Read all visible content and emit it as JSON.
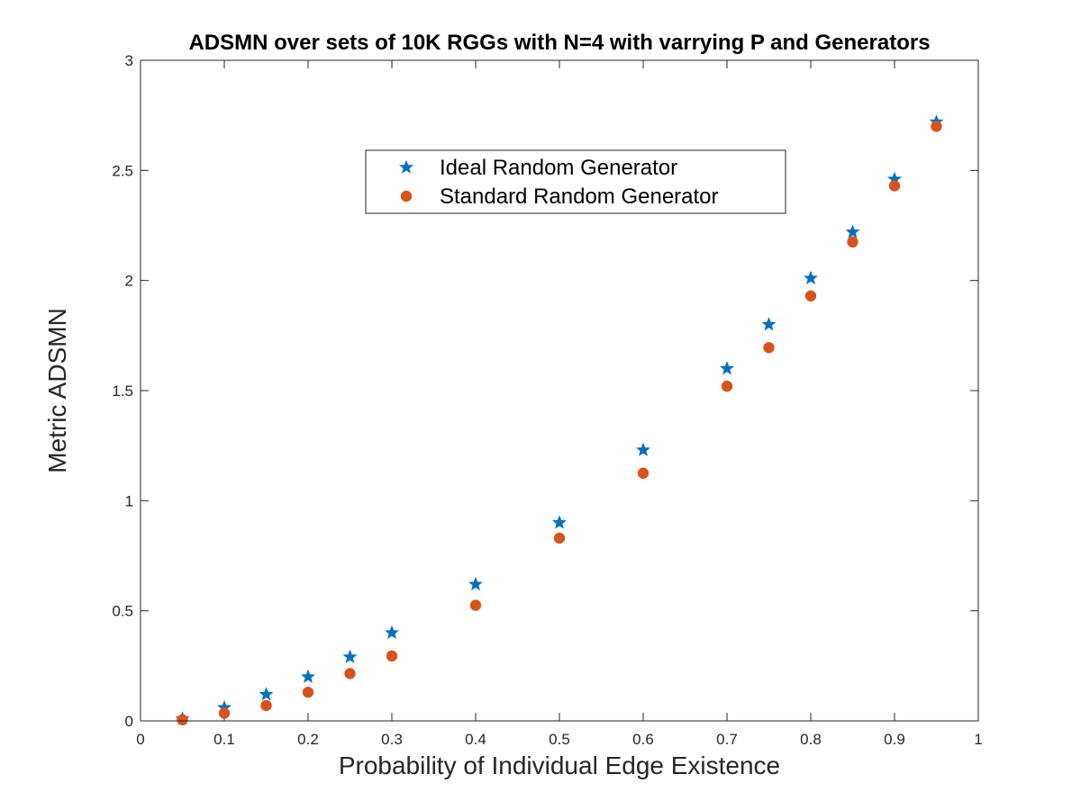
{
  "chart_data": {
    "type": "scatter",
    "title": "ADSMN over sets of 10K RGGs with N=4 with varrying P and Generators",
    "xlabel": "Probability of Individual Edge Existence",
    "ylabel": "Metric ADSMN",
    "xlim": [
      0,
      1
    ],
    "ylim": [
      0,
      3
    ],
    "xticks": [
      "0",
      "0.1",
      "0.2",
      "0.3",
      "0.4",
      "0.5",
      "0.6",
      "0.7",
      "0.8",
      "0.9",
      "1"
    ],
    "yticks": [
      "0",
      "0.5",
      "1",
      "1.5",
      "2",
      "2.5",
      "3"
    ],
    "grid": false,
    "legend_position": "upper-center",
    "series": [
      {
        "name": "Ideal Random Generator",
        "marker": "star",
        "color": "#0072BD",
        "x": [
          0.05,
          0.1,
          0.15,
          0.2,
          0.25,
          0.3,
          0.4,
          0.5,
          0.6,
          0.7,
          0.75,
          0.8,
          0.85,
          0.9,
          0.95
        ],
        "y": [
          0.01,
          0.06,
          0.12,
          0.2,
          0.29,
          0.4,
          0.62,
          0.9,
          1.23,
          1.6,
          1.8,
          2.01,
          2.22,
          2.46,
          2.72
        ]
      },
      {
        "name": "Standard Random Generator",
        "marker": "circle",
        "color": "#D95319",
        "x": [
          0.05,
          0.1,
          0.15,
          0.2,
          0.25,
          0.3,
          0.4,
          0.5,
          0.6,
          0.7,
          0.75,
          0.8,
          0.85,
          0.9,
          0.95
        ],
        "y": [
          0.005,
          0.035,
          0.07,
          0.13,
          0.215,
          0.295,
          0.525,
          0.83,
          1.125,
          1.52,
          1.695,
          1.93,
          2.175,
          2.43,
          2.7
        ]
      }
    ]
  }
}
